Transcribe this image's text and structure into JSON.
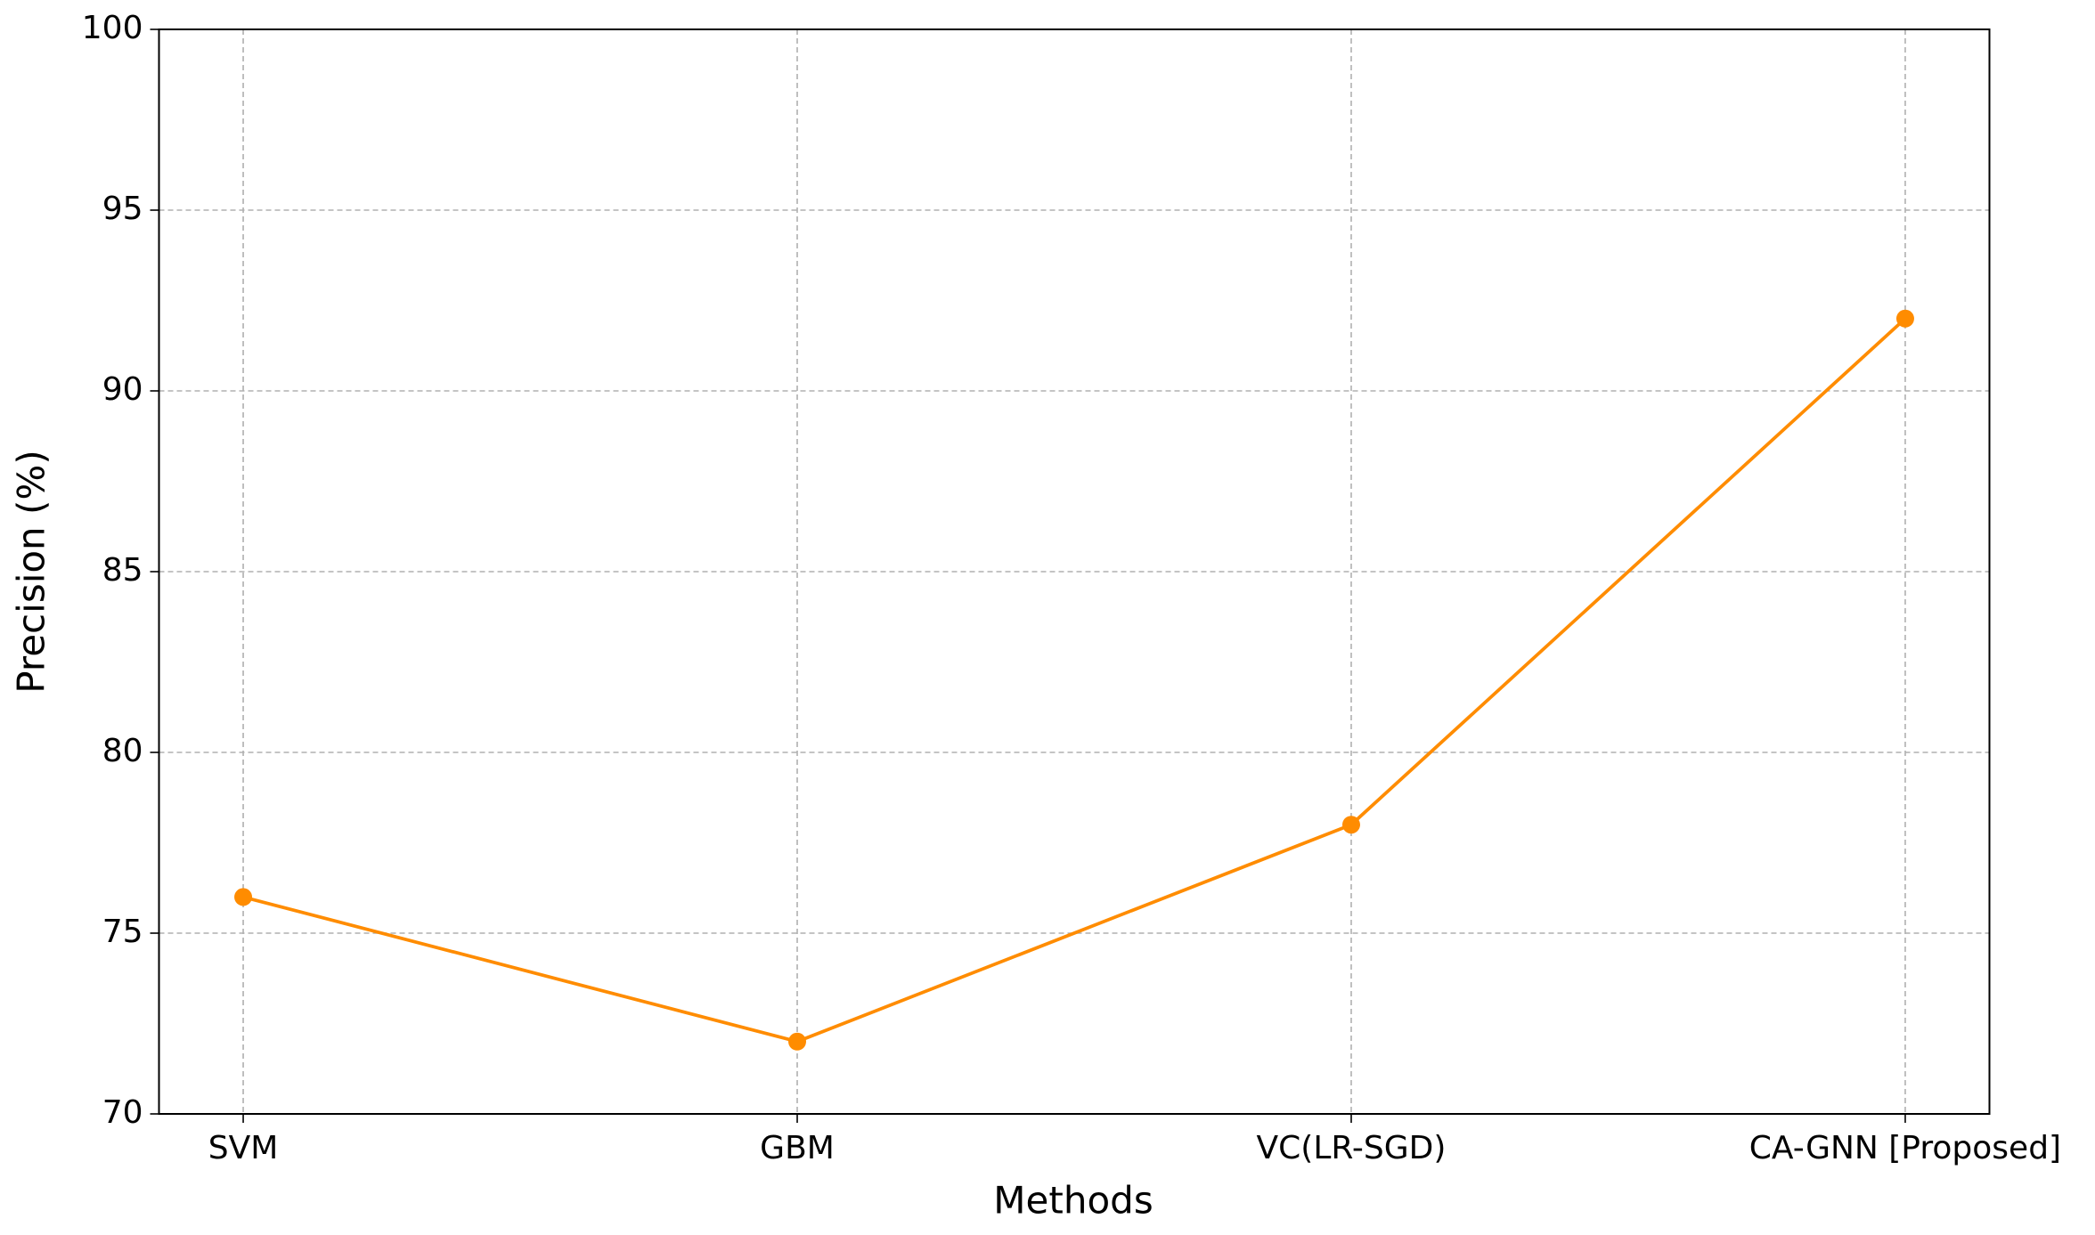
{
  "chart_data": {
    "type": "line",
    "xlabel": "Methods",
    "ylabel": "Precision (%)",
    "categories": [
      "SVM",
      "GBM",
      "VC(LR-SGD)",
      "CA-GNN [Proposed]"
    ],
    "values": [
      76,
      72,
      78,
      92
    ],
    "color": "#ff8c00",
    "ylim": [
      70,
      100
    ],
    "yticks": [
      70,
      75,
      80,
      85,
      90,
      95,
      100
    ],
    "grid": true
  }
}
